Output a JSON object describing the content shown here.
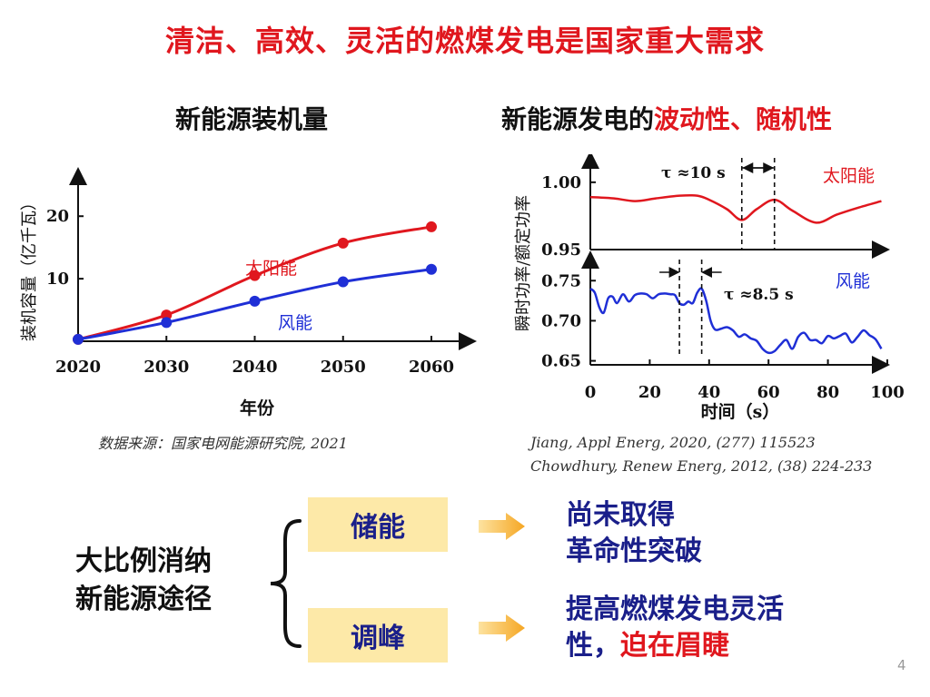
{
  "title": "清洁、高效、灵活的燃煤发电是国家重大需求",
  "left_chart_title": "新能源装机量",
  "right_chart_title": {
    "prefix": "新能源发电的",
    "highlight": "波动性、随机性"
  },
  "left_source": "数据来源：国家电网能源研究院, 2021",
  "right_source_1": "Jiang, Appl Energ, 2020, (277) 115523",
  "right_source_2": "Chowdhury, Renew Energ, 2012, (38) 224-233",
  "chart_data": [
    {
      "type": "line",
      "title": "新能源装机量",
      "xlabel": "年份",
      "ylabel": "装机容量（亿千瓦）",
      "x": [
        2020,
        2030,
        2040,
        2050,
        2060
      ],
      "xticks": [
        "2020",
        "2030",
        "2040",
        "2050",
        "2060"
      ],
      "yticks": [
        "10",
        "20"
      ],
      "ylim": [
        0,
        27
      ],
      "series": [
        {
          "name": "太阳能",
          "color": "#e0171e",
          "values": [
            0.3,
            4.2,
            10.5,
            15.7,
            18.3
          ]
        },
        {
          "name": "风能",
          "color": "#1f2fd6",
          "values": [
            0.3,
            3.0,
            6.4,
            9.5,
            11.5
          ]
        }
      ]
    },
    {
      "type": "line",
      "xlabel": "时间（s）",
      "ylabel": "瞬时功率/额定功率",
      "xticks": [
        "0",
        "20",
        "40",
        "60",
        "80",
        "100"
      ],
      "panels": [
        {
          "name": "太阳能",
          "color": "#e0171e",
          "yticks": [
            "0.95",
            "1.00"
          ],
          "ylim": [
            0.95,
            1.01
          ],
          "annotation": "τ ≈10 s",
          "markers_x": [
            51,
            62
          ],
          "x": [
            0,
            8,
            15,
            22,
            30,
            36,
            40,
            46,
            51,
            56,
            62,
            68,
            76,
            83,
            90,
            98
          ],
          "y": [
            0.989,
            0.988,
            0.986,
            0.988,
            0.99,
            0.99,
            0.987,
            0.98,
            0.972,
            0.98,
            0.987,
            0.979,
            0.97,
            0.976,
            0.981,
            0.986
          ]
        },
        {
          "name": "风能",
          "color": "#1f2fd6",
          "yticks": [
            "0.65",
            "0.70",
            "0.75"
          ],
          "ylim": [
            0.645,
            0.765
          ],
          "annotation": "τ ≈8.5 s",
          "markers_x": [
            30,
            37.5
          ],
          "x": [
            0,
            1.5,
            3,
            4.5,
            6,
            7.5,
            9,
            11,
            13,
            15,
            17,
            19,
            21,
            23,
            25,
            27,
            28.5,
            30,
            31.5,
            33,
            34.5,
            36,
            37.5,
            39,
            40.5,
            42,
            44,
            46,
            48,
            50,
            52,
            54,
            56,
            58,
            60,
            62,
            64,
            66,
            68,
            70,
            72,
            74,
            76,
            78,
            80,
            82,
            84,
            86,
            88,
            90,
            92,
            94,
            96,
            98
          ],
          "y": [
            0.74,
            0.735,
            0.717,
            0.71,
            0.728,
            0.73,
            0.722,
            0.733,
            0.724,
            0.732,
            0.734,
            0.733,
            0.728,
            0.733,
            0.734,
            0.733,
            0.732,
            0.722,
            0.72,
            0.724,
            0.722,
            0.735,
            0.74,
            0.725,
            0.7,
            0.689,
            0.69,
            0.692,
            0.688,
            0.68,
            0.683,
            0.678,
            0.675,
            0.665,
            0.66,
            0.662,
            0.67,
            0.676,
            0.665,
            0.68,
            0.685,
            0.676,
            0.676,
            0.672,
            0.681,
            0.678,
            0.681,
            0.684,
            0.673,
            0.68,
            0.688,
            0.682,
            0.677,
            0.665
          ]
        }
      ]
    }
  ],
  "bottom": {
    "left_line_1": "大比例消纳",
    "left_line_2": "新能源途径",
    "box1": "储能",
    "box2": "调峰",
    "result1_line1": "尚未取得",
    "result1_line2": "革命性突破",
    "result2_line1": "提高燃煤发电灵活",
    "result2_line2_prefix": "性，",
    "result2_line2_highlight": "迫在眉睫"
  },
  "page_number": "4",
  "colors": {
    "accent_red": "#e0171e",
    "accent_blue": "#1a1f8a",
    "box_bg": "#fde9a8",
    "arrow": "#f5a623"
  }
}
